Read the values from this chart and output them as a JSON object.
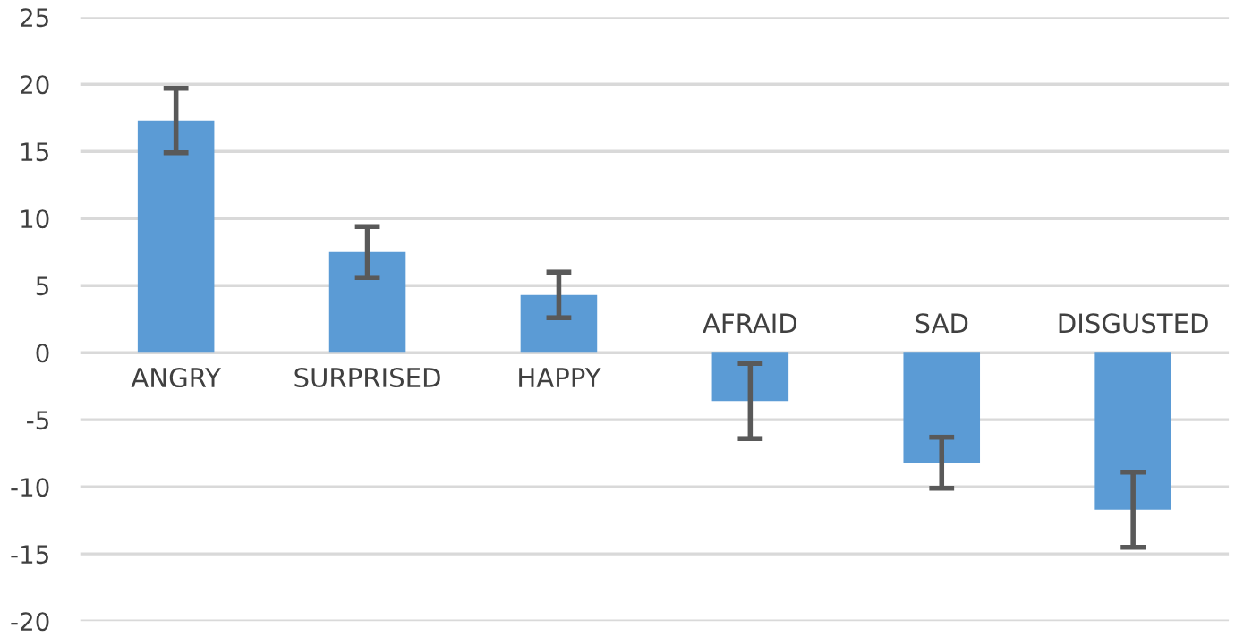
{
  "chart_data": {
    "type": "bar",
    "categories": [
      "ANGRY",
      "SURPRISED",
      "HAPPY",
      "AFRAID",
      "SAD",
      "DISGUSTED"
    ],
    "values": [
      17.3,
      7.5,
      4.3,
      -3.6,
      -8.2,
      -11.7
    ],
    "errors": [
      2.4,
      1.9,
      1.7,
      2.8,
      1.9,
      2.8
    ],
    "color": "#5b9bd5",
    "ylim": [
      -20,
      25
    ],
    "yticks": [
      -20,
      -15,
      -10,
      -5,
      0,
      5,
      10,
      15,
      20,
      25
    ],
    "grid": "y"
  }
}
